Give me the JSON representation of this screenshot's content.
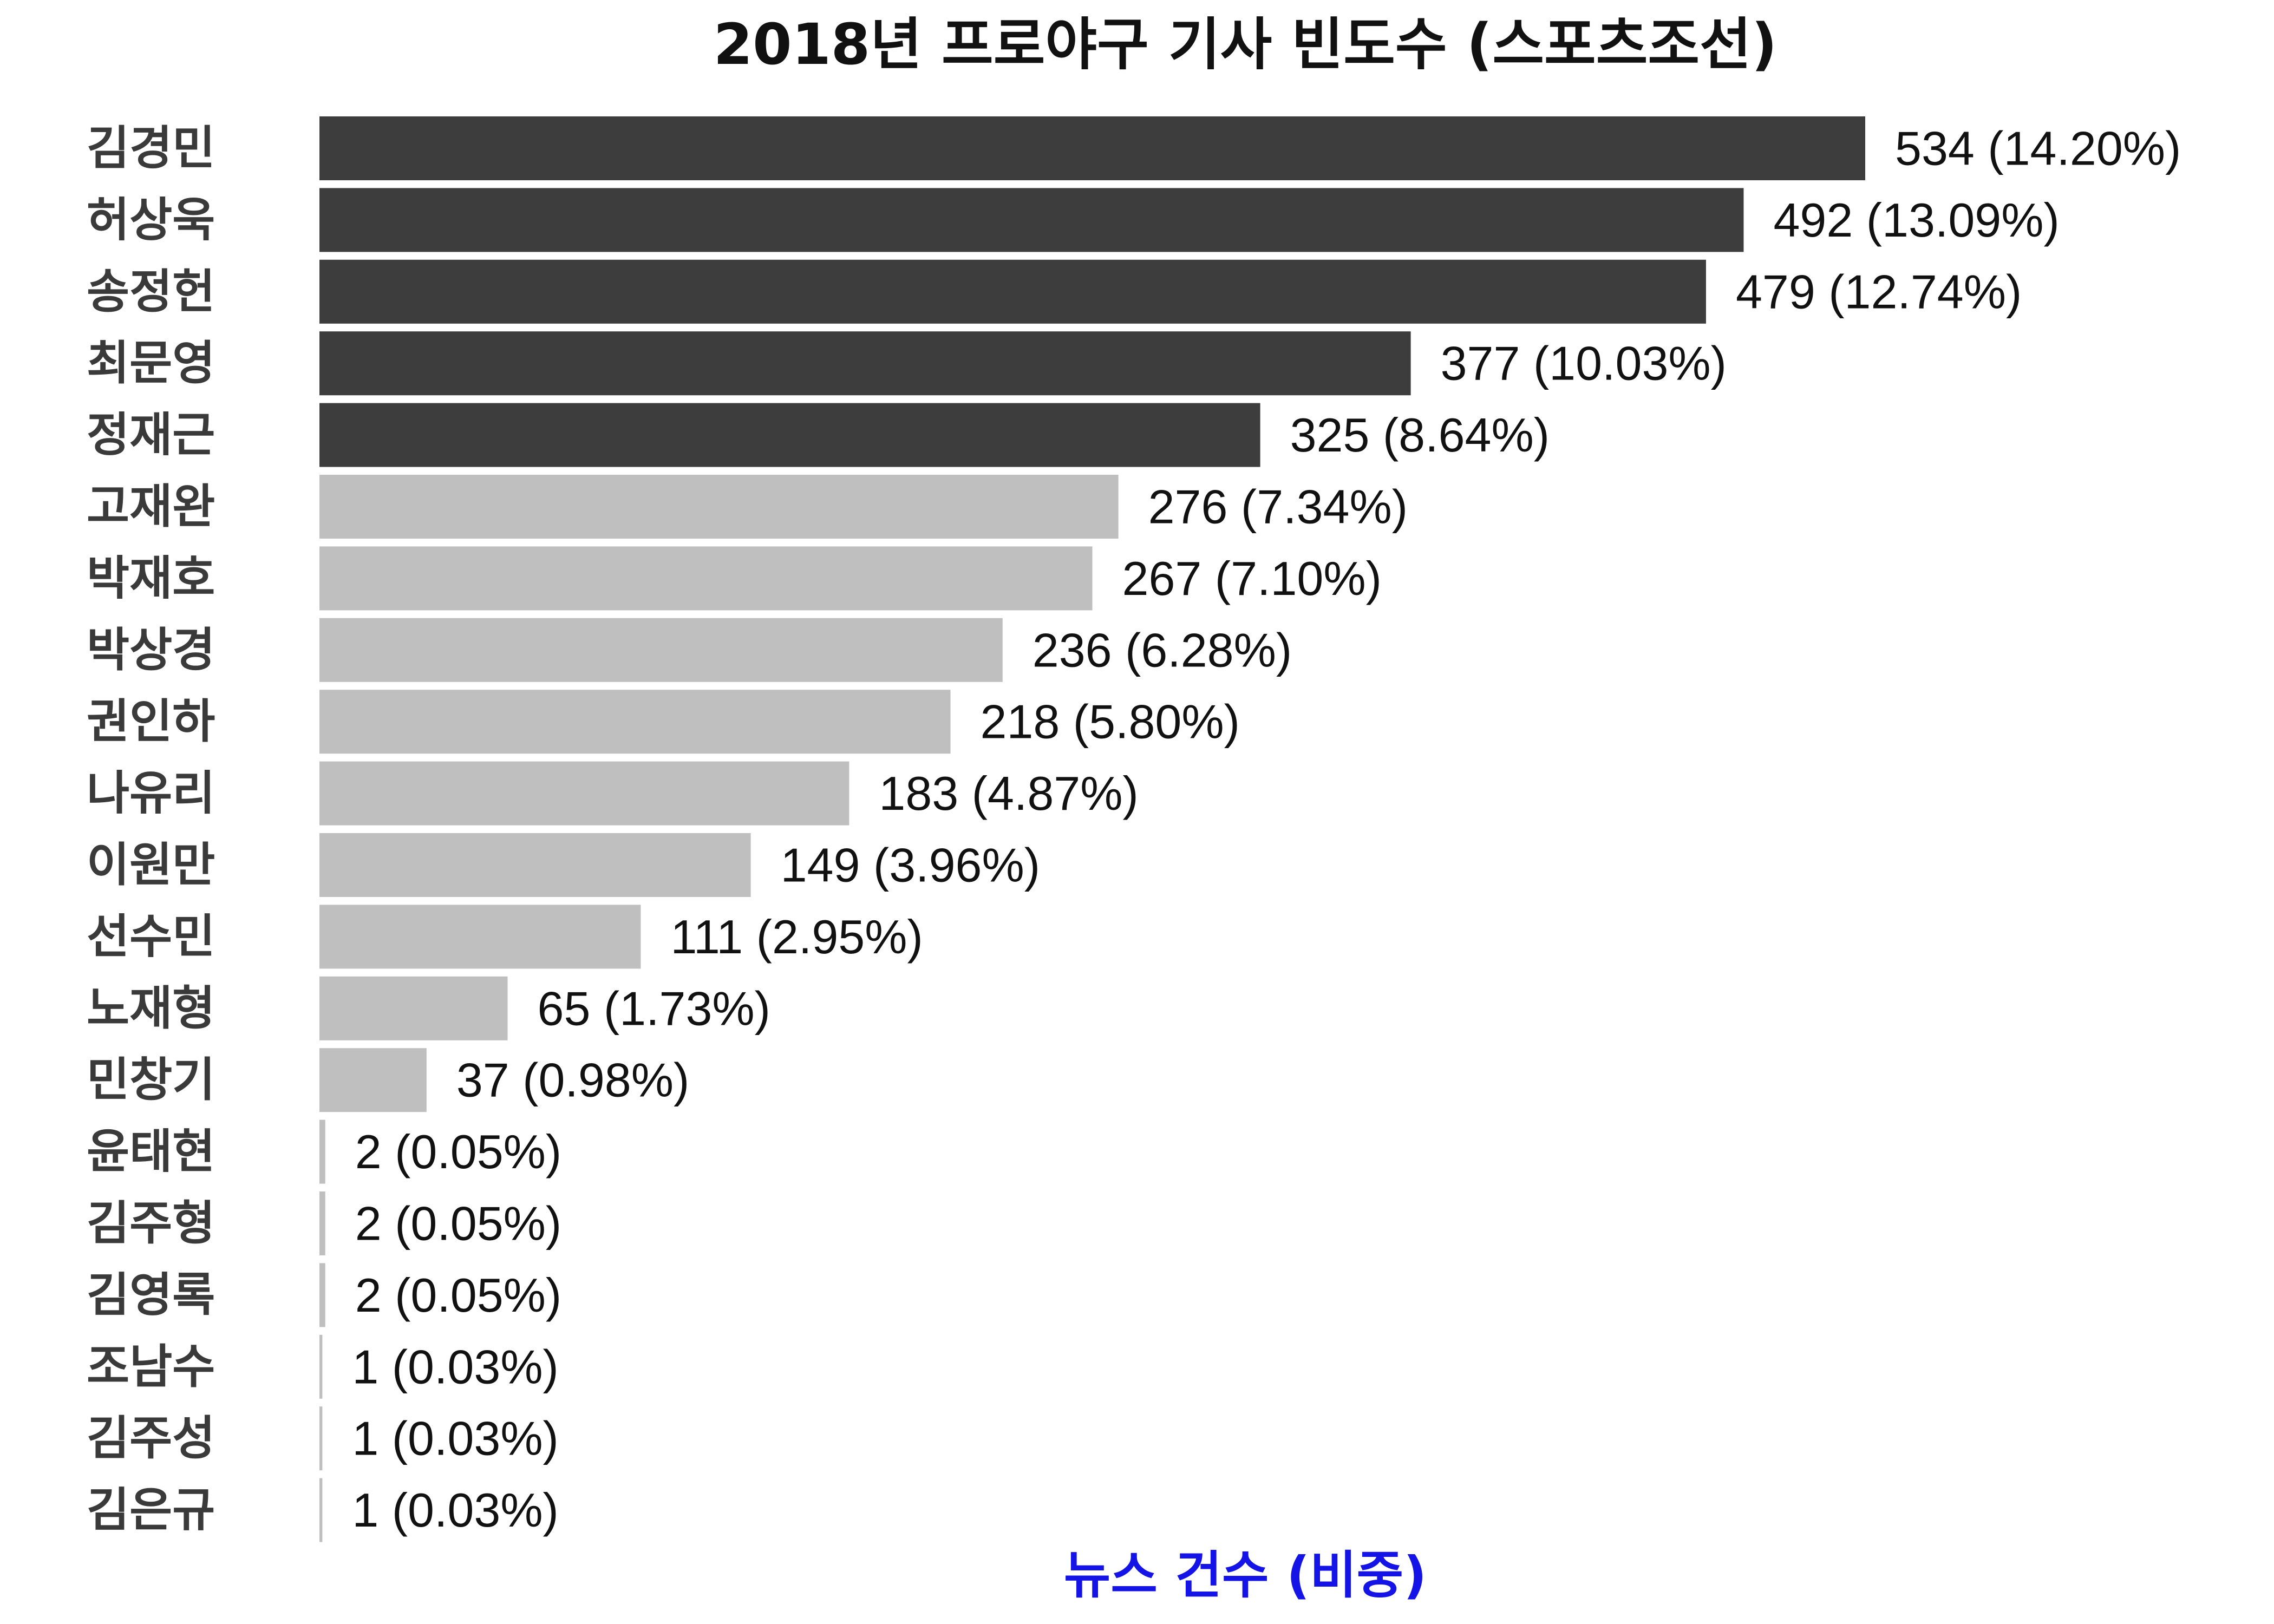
{
  "chart_data": {
    "type": "bar",
    "orientation": "horizontal",
    "title": "2018년 프로야구 기사 빈도수 (스포츠조선)",
    "xlabel": "뉴스 건수 (비중)",
    "ylabel": "",
    "xlim": [
      0,
      534
    ],
    "grid": false,
    "legend": "none",
    "categories": [
      "김경민",
      "허상욱",
      "송정헌",
      "최문영",
      "정재근",
      "고재완",
      "박재호",
      "박상경",
      "권인하",
      "나유리",
      "이원만",
      "선수민",
      "노재형",
      "민창기",
      "윤태현",
      "김주형",
      "김영록",
      "조남수",
      "김주성",
      "김은규"
    ],
    "values": [
      534,
      492,
      479,
      377,
      325,
      276,
      267,
      236,
      218,
      183,
      149,
      111,
      65,
      37,
      2,
      2,
      2,
      1,
      1,
      1
    ],
    "shares": [
      "14.20%",
      "13.09%",
      "12.74%",
      "10.03%",
      "8.64%",
      "7.34%",
      "7.10%",
      "6.28%",
      "5.80%",
      "4.87%",
      "3.96%",
      "2.95%",
      "1.73%",
      "0.98%",
      "0.05%",
      "0.05%",
      "0.05%",
      "0.03%",
      "0.03%",
      "0.03%"
    ],
    "value_labels": [
      "534 (14.20%)",
      "492 (13.09%)",
      "479 (12.74%)",
      "377 (10.03%)",
      "325 (8.64%)",
      "276 (7.34%)",
      "267 (7.10%)",
      "236 (6.28%)",
      "218 (5.80%)",
      "183 (4.87%)",
      "149 (3.96%)",
      "111 (2.95%)",
      "65 (1.73%)",
      "37 (0.98%)",
      "2 (0.05%)",
      "2 (0.05%)",
      "2 (0.05%)",
      "1 (0.03%)",
      "1 (0.03%)",
      "1 (0.03%)"
    ],
    "highlight_count": 5
  },
  "colors": {
    "highlight_bar": "#3d3d3d",
    "normal_bar": "#bfbfbf",
    "axis_title": "#1414e6",
    "category_text": "#3a3a3a",
    "value_text": "#111111",
    "title_text": "#111111"
  }
}
